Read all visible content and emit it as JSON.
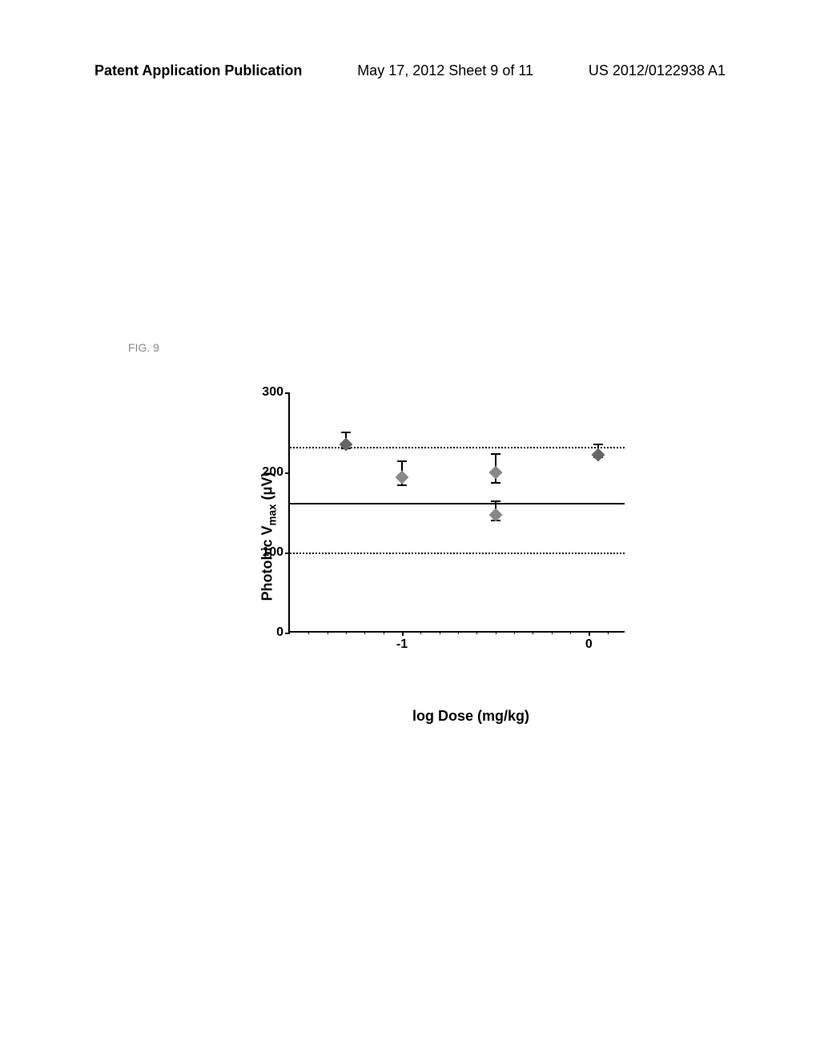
{
  "header": {
    "left": "Patent Application Publication",
    "center": "May 17, 2012  Sheet 9 of 11",
    "right": "US 2012/0122938 A1"
  },
  "figure_label": "FIG. 9",
  "chart": {
    "type": "scatter",
    "ylabel_prefix": "Photobic V",
    "ylabel_sub": "max",
    "ylabel_suffix": " (μV)",
    "xlabel": "log Dose (mg/kg)",
    "ylim": [
      0,
      300
    ],
    "ytick_step": 100,
    "yticks": [
      0,
      100,
      200,
      300
    ],
    "xlim": [
      -1.6,
      0.2
    ],
    "xticks": [
      -1,
      0
    ],
    "x_minor_ticks": [
      -1.5,
      -1.4,
      -1.3,
      -1.2,
      -1.1,
      -0.9,
      -0.8,
      -0.7,
      -0.6,
      -0.5,
      -0.4,
      -0.3,
      -0.2,
      -0.1,
      0.1
    ],
    "ref_lines": {
      "dashed_upper": 232,
      "solid_mid": 162,
      "dashed_lower": 100
    },
    "points": [
      {
        "x": -1.3,
        "y": 235,
        "err": 10,
        "color": "#666666"
      },
      {
        "x": -1.0,
        "y": 194,
        "err": 15,
        "color": "#888888"
      },
      {
        "x": -0.5,
        "y": 200,
        "err": 18,
        "color": "#888888"
      },
      {
        "x": -0.5,
        "y": 147,
        "err": 12,
        "color": "#888888"
      },
      {
        "x": 0.05,
        "y": 222,
        "err": 8,
        "color": "#666666"
      }
    ],
    "colors": {
      "axis": "#000000",
      "background": "#ffffff",
      "marker": "#666666"
    }
  }
}
